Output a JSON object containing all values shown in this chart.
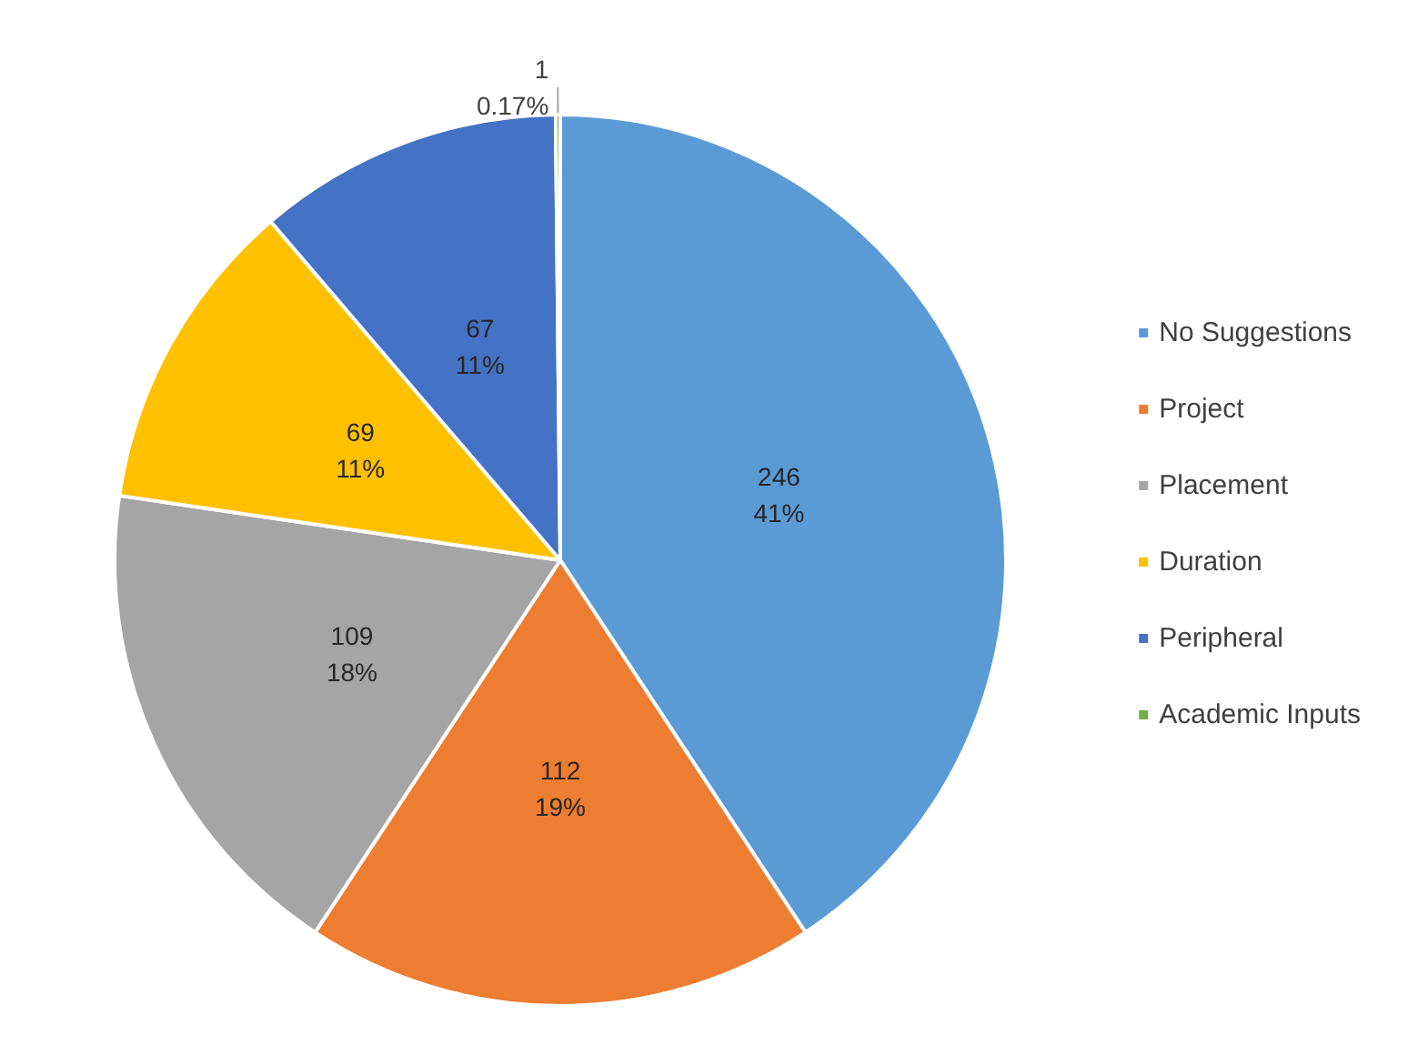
{
  "chart_data": {
    "type": "pie",
    "categories": [
      "No Suggestions",
      "Project",
      "Placement",
      "Duration",
      "Peripheral",
      "Academic Inputs"
    ],
    "values": [
      246,
      112,
      109,
      69,
      67,
      1
    ],
    "colors": [
      "#5b9bd5",
      "#ed7d31",
      "#a5a5a5",
      "#ffc000",
      "#4472c4",
      "#70ad47"
    ],
    "value_labels": [
      "246\n41%",
      "112\n19%",
      "109\n18%",
      "69\n11%",
      "67\n11%",
      "1\n0.17%"
    ],
    "legend": "right"
  }
}
